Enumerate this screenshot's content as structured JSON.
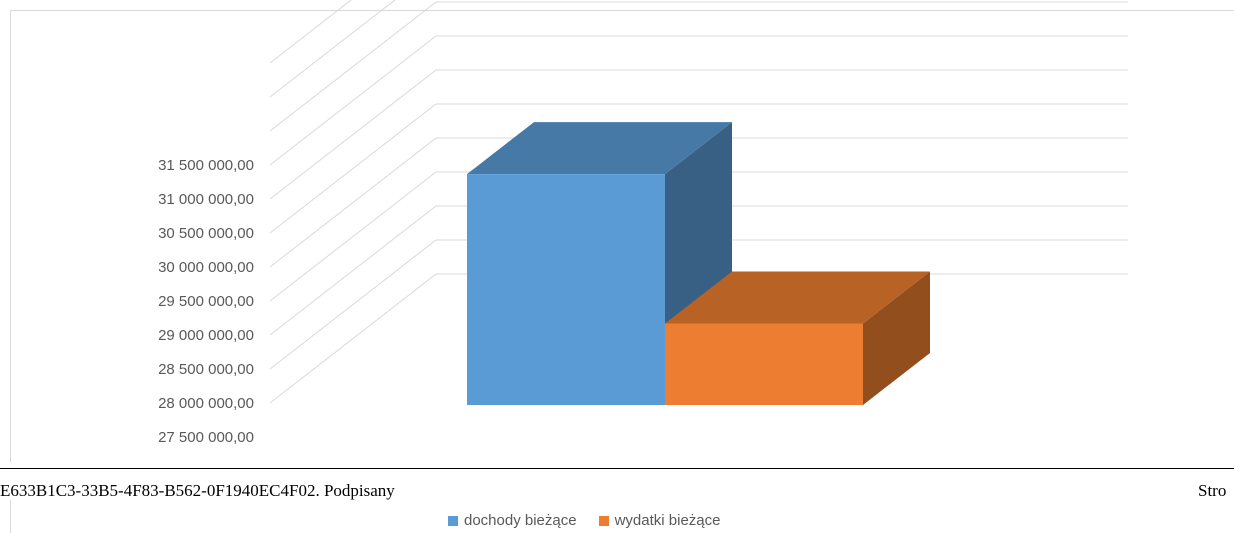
{
  "chart_data": {
    "type": "bar",
    "title": "",
    "xlabel": "",
    "ylabel": "",
    "ylim": [
      27500000,
      31500000
    ],
    "y_tick_values": [
      27500000,
      28000000,
      28500000,
      29000000,
      29500000,
      30000000,
      30500000,
      31000000,
      31500000
    ],
    "y_tick_labels": [
      "27 500 000,00",
      "28 000 000,00",
      "28 500 000,00",
      "29 000 000,00",
      "29 500 000,00",
      "30 000 000,00",
      "30 500 000,00",
      "31 000 000,00",
      "31 500 000,00"
    ],
    "grid": true,
    "legend_position": "bottom",
    "style": "3d-column",
    "series": [
      {
        "name": "dochody bieżące",
        "values": [
          31410000
        ],
        "color": "#5b9bd5"
      },
      {
        "name": "wydatki bieżące",
        "values": [
          29180000
        ],
        "color": "#ed7d31"
      }
    ]
  },
  "footer": {
    "document_text": "E633B1C3-33B5-4F83-B562-0F1940EC4F02. Podpisany",
    "page_text": "Stro"
  }
}
